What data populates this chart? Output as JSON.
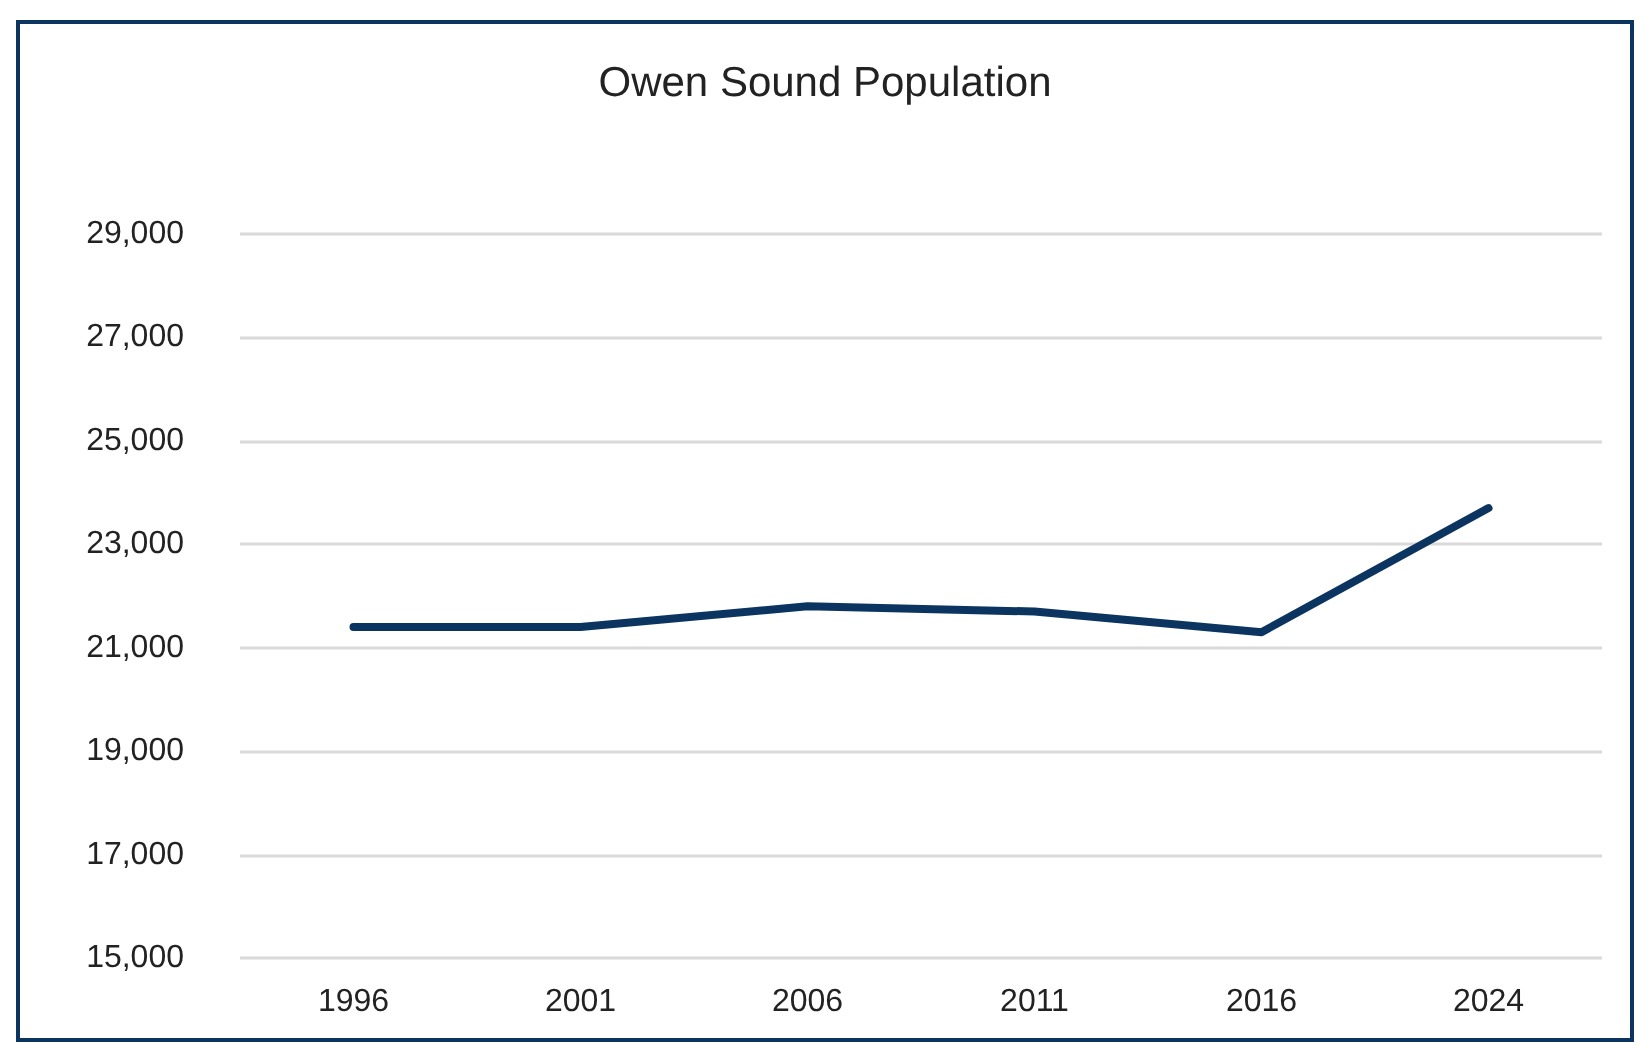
{
  "chart_data": {
    "type": "line",
    "title": "Owen Sound Population",
    "categories": [
      "1996",
      "2001",
      "2006",
      "2011",
      "2016",
      "2024"
    ],
    "series": [
      {
        "color": "#0b3560",
        "values": [
          21400,
          21400,
          21800,
          21700,
          21300,
          23700
        ]
      }
    ],
    "ylim": [
      15000,
      29000
    ],
    "yticks": [
      {
        "value": 15000,
        "label": "15,000"
      },
      {
        "value": 17000,
        "label": "17,000"
      },
      {
        "value": 19000,
        "label": "19,000"
      },
      {
        "value": 21000,
        "label": "21,000"
      },
      {
        "value": 23000,
        "label": "23,000"
      },
      {
        "value": 25000,
        "label": "25,000"
      },
      {
        "value": 27000,
        "label": "27,000"
      },
      {
        "value": 29000,
        "label": "29,000"
      }
    ],
    "grid": "y",
    "marker": "none",
    "line_style": "solid"
  }
}
